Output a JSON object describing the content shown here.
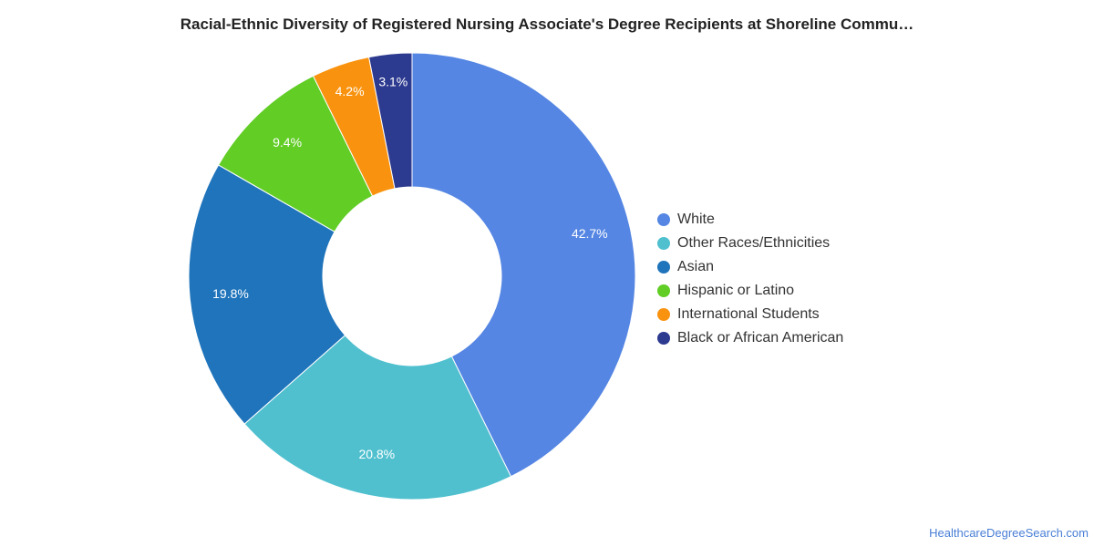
{
  "chart_data": {
    "type": "pie",
    "variant": "donut",
    "title": "Racial-Ethnic Diversity of Registered Nursing Associate's Degree Recipients at Shoreline Commu…",
    "categories": [
      "White",
      "Other Races/Ethnicities",
      "Asian",
      "Hispanic or Latino",
      "International Students",
      "Black or African American"
    ],
    "values": [
      42.7,
      20.8,
      19.8,
      9.4,
      4.2,
      3.1
    ],
    "value_labels": [
      "42.7%",
      "20.8%",
      "19.8%",
      "9.4%",
      "4.2%",
      "3.1%"
    ],
    "colors": [
      "#5586E3",
      "#50C0CF",
      "#1F74BB",
      "#61CD25",
      "#F9930F",
      "#2C3A8F"
    ],
    "legend_position": "right",
    "start_angle": "top, clockwise"
  },
  "footer": {
    "source": "HealthcareDegreeSearch.com"
  }
}
